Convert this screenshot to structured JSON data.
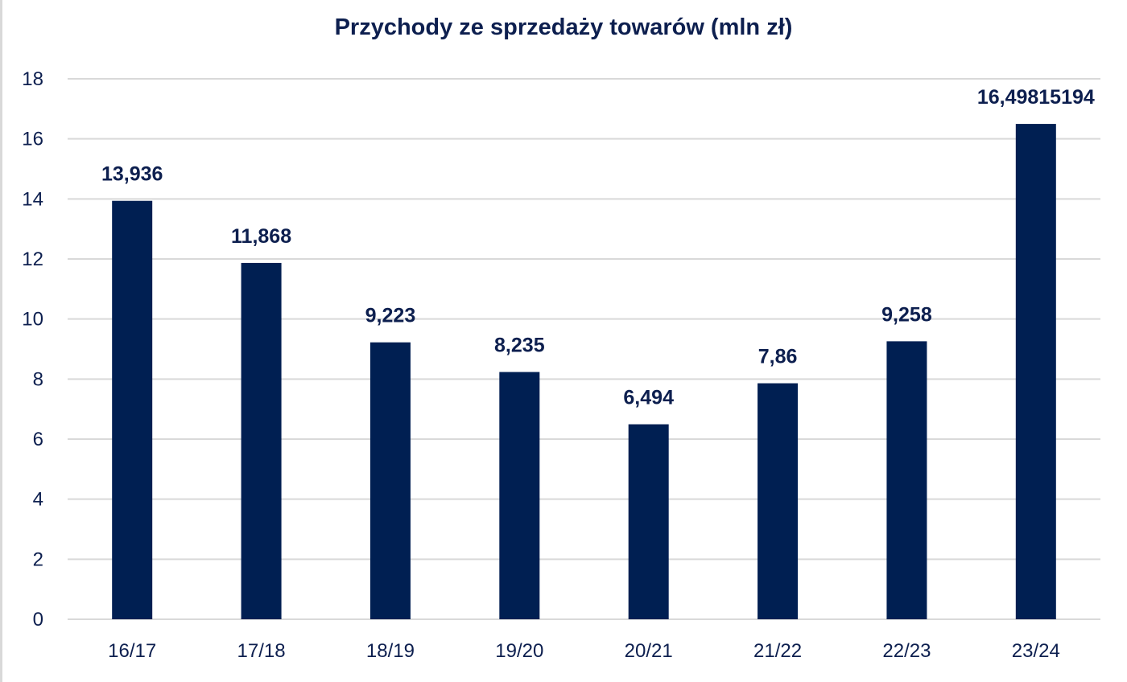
{
  "chart_data": {
    "type": "bar",
    "title": "Przychody ze sprzedaży towarów (mln zł)",
    "xlabel": "",
    "ylabel": "",
    "categories": [
      "16/17",
      "17/18",
      "18/19",
      "19/20",
      "20/21",
      "21/22",
      "22/23",
      "23/24"
    ],
    "values": [
      13.936,
      11.868,
      9.223,
      8.235,
      6.494,
      7.86,
      9.258,
      16.49815194
    ],
    "data_labels": [
      "13,936",
      "11,868",
      "9,223",
      "8,235",
      "6,494",
      "7,86",
      "9,258",
      "16,49815194"
    ],
    "ylim": [
      0,
      18
    ],
    "yticks": [
      "0",
      "2",
      "4",
      "6",
      "8",
      "10",
      "12",
      "14",
      "16",
      "18"
    ],
    "grid": true,
    "legend": "none",
    "bar_color": "#001f52",
    "grid_color": "#d9d9d9",
    "text_color": "#0d1f4f"
  }
}
